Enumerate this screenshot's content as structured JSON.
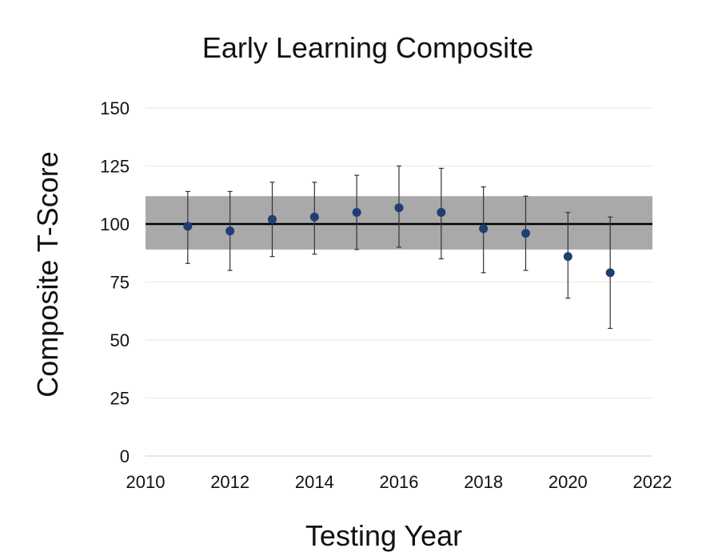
{
  "chart_data": {
    "type": "scatter",
    "title": "Early Learning Composite",
    "xlabel": "Testing Year",
    "ylabel": "Composite T-Score",
    "xlim": [
      2010,
      2022
    ],
    "ylim": [
      0,
      150
    ],
    "xticks": [
      "2010",
      "2012",
      "2014",
      "2016",
      "2018",
      "2020",
      "2022"
    ],
    "yticks": [
      "0",
      "25",
      "50",
      "75",
      "100",
      "125",
      "150"
    ],
    "grid": "horizontal",
    "legend": "none",
    "reference_line": 100,
    "reference_band": [
      89,
      112
    ],
    "series": [
      {
        "points": [
          {
            "x": 2011,
            "y": 99,
            "err_low": 83,
            "err_high": 114
          },
          {
            "x": 2012,
            "y": 97,
            "err_low": 80,
            "err_high": 114
          },
          {
            "x": 2013,
            "y": 102,
            "err_low": 86,
            "err_high": 118
          },
          {
            "x": 2014,
            "y": 103,
            "err_low": 87,
            "err_high": 118
          },
          {
            "x": 2015,
            "y": 105,
            "err_low": 89,
            "err_high": 121
          },
          {
            "x": 2016,
            "y": 107,
            "err_low": 90,
            "err_high": 125
          },
          {
            "x": 2017,
            "y": 105,
            "err_low": 85,
            "err_high": 124
          },
          {
            "x": 2018,
            "y": 98,
            "err_low": 79,
            "err_high": 116
          },
          {
            "x": 2019,
            "y": 96,
            "err_low": 80,
            "err_high": 112
          },
          {
            "x": 2020,
            "y": 86,
            "err_low": 68,
            "err_high": 105
          },
          {
            "x": 2021,
            "y": 79,
            "err_low": 55,
            "err_high": 103
          }
        ]
      }
    ],
    "colors": {
      "point": "#1f3f73",
      "band": "#a9a9a9",
      "reference_line": "#000000",
      "error_bar": "#333333",
      "grid": "#e6e6e6"
    }
  }
}
